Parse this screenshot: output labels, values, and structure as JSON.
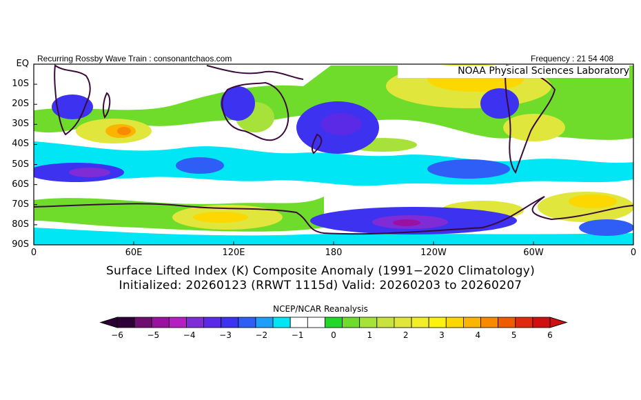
{
  "header": {
    "left_text": "Recurring Rossby Wave Train : consonantchaos.com",
    "right_text": "Frequency : 21 54 408",
    "lab_label": "NOAA Physical Sciences Laboratory"
  },
  "titles": {
    "line1": "Surface Lifted Index (K) Composite Anomaly (1991−2020 Climatology)",
    "line2": "Initialized: 20260123 (RRWT 1115d) Valid: 20260203 to 20260207",
    "source": "NCEP/NCAR Reanalysis"
  },
  "chart_data": {
    "type": "heatmap",
    "projection": "equirectangular",
    "variable": "Surface Lifted Index anomaly (K)",
    "x_ticks": [
      "0",
      "60E",
      "120E",
      "180",
      "120W",
      "60W",
      "0"
    ],
    "y_ticks": [
      "EQ",
      "10S",
      "20S",
      "30S",
      "40S",
      "50S",
      "60S",
      "70S",
      "80S",
      "90S"
    ],
    "xlim": [
      0,
      360
    ],
    "ylim": [
      -90,
      0
    ],
    "colorbar": {
      "ticks": [
        "−6",
        "−5",
        "−4",
        "−3",
        "−2",
        "−1",
        "0",
        "1",
        "2",
        "3",
        "4",
        "5",
        "6"
      ],
      "colors": [
        "#2e0038",
        "#6e0e6e",
        "#9a10a0",
        "#b51ec0",
        "#7f2bd6",
        "#5a2ae6",
        "#3c32f0",
        "#2e5ef5",
        "#1d9ef8",
        "#00e6f5",
        "#ffffff",
        "#ffffff",
        "#22d62a",
        "#6fdc2c",
        "#a7e23a",
        "#c9e23e",
        "#e1e63c",
        "#f2ee2a",
        "#fbf20e",
        "#fcd700",
        "#fbb400",
        "#f78a00",
        "#ef5c00",
        "#e02a10",
        "#d01010"
      ],
      "under_color": "#2e0038",
      "over_color": "#d01010"
    },
    "anomaly_regions": [
      {
        "lon": 200,
        "lat": -84,
        "value": -5.5
      },
      {
        "lon": 165,
        "lat": -30,
        "value": -3.5
      },
      {
        "lon": 275,
        "lat": -20,
        "value": -4.0
      },
      {
        "lon": 40,
        "lat": -55,
        "value": -4.0
      },
      {
        "lon": 125,
        "lat": -22,
        "value": -3.5
      },
      {
        "lon": 35,
        "lat": -35,
        "value": 4.5
      },
      {
        "lon": 225,
        "lat": -5,
        "value": 4.0
      },
      {
        "lon": 290,
        "lat": -28,
        "value": 3.0
      },
      {
        "lon": 70,
        "lat": -75,
        "value": 3.0
      },
      {
        "lon": 110,
        "lat": -78,
        "value": 2.5
      },
      {
        "lon": 340,
        "lat": -65,
        "value": 3.0
      },
      {
        "lon": 240,
        "lat": -72,
        "value": 2.5
      },
      {
        "lon": 180,
        "lat": -60,
        "value": 0.5
      },
      {
        "lon": 10,
        "lat": -45,
        "value": -1.0
      }
    ]
  }
}
